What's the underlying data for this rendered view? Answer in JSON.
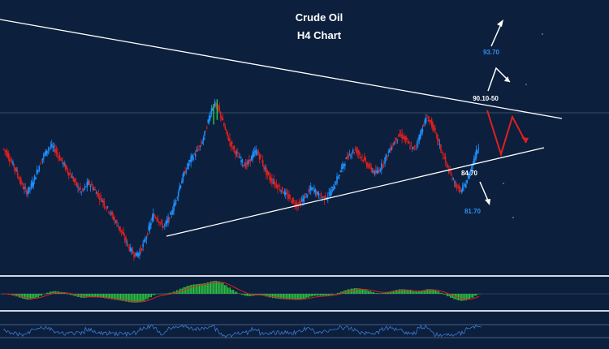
{
  "chart_data": {
    "type": "candlestick",
    "title": "Crude Oil",
    "subtitle": "H4 Chart",
    "levels": {
      "upper_target": "93.70",
      "resistance": "90.10-50",
      "support": "84.70",
      "lower_target": "81.70"
    },
    "price_range": [
      79.6,
      98.0
    ],
    "panels": [
      "price",
      "macd",
      "rsi"
    ],
    "colors": {
      "background": "#0c1f3c",
      "up_candle": "#1e90ff",
      "down_candle": "#e02020",
      "trendline": "#ffffff",
      "projection_red": "#e02020",
      "projection_white": "#ffffff",
      "histogram": "#2ecc40",
      "signal": "#e02020",
      "rsi_line": "#3a7bd5",
      "target_label": "#2e8ff0"
    },
    "closes": [
      90.0,
      89.7,
      89.1,
      88.6,
      88.0,
      87.2,
      86.6,
      86.2,
      86.6,
      87.2,
      88.0,
      88.8,
      89.4,
      89.9,
      90.2,
      90.0,
      89.5,
      89.0,
      88.5,
      88.0,
      87.6,
      87.1,
      86.6,
      86.2,
      86.6,
      87.0,
      86.7,
      86.3,
      85.9,
      85.5,
      85.0,
      84.6,
      84.1,
      83.6,
      83.1,
      82.5,
      81.9,
      81.3,
      80.9,
      80.7,
      81.0,
      81.6,
      82.4,
      83.3,
      84.2,
      84.0,
      83.5,
      83.2,
      83.6,
      84.2,
      85.0,
      86.0,
      87.0,
      87.8,
      88.5,
      89.1,
      89.5,
      89.9,
      90.4,
      91.3,
      92.4,
      93.5,
      93.9,
      93.5,
      92.6,
      91.6,
      90.8,
      90.2,
      89.7,
      89.2,
      88.8,
      88.5,
      88.9,
      89.4,
      89.8,
      89.3,
      88.6,
      87.9,
      87.4,
      87.1,
      86.8,
      86.5,
      86.2,
      85.9,
      85.6,
      85.3,
      85.1,
      85.3,
      85.7,
      86.1,
      86.5,
      86.4,
      86.0,
      85.8,
      85.7,
      85.9,
      86.3,
      86.9,
      87.6,
      88.3,
      88.9,
      89.4,
      89.7,
      89.9,
      89.6,
      89.2,
      88.8,
      88.4,
      88.1,
      87.8,
      88.2,
      88.7,
      89.3,
      89.9,
      90.4,
      90.9,
      91.2,
      91.0,
      90.6,
      90.2,
      89.9,
      90.5,
      91.3,
      92.2,
      92.7,
      92.3,
      91.6,
      90.8,
      89.9,
      89.1,
      88.3,
      87.6,
      87.0,
      86.5,
      86.3,
      86.8,
      87.5,
      88.5,
      89.4,
      90.2
    ]
  }
}
